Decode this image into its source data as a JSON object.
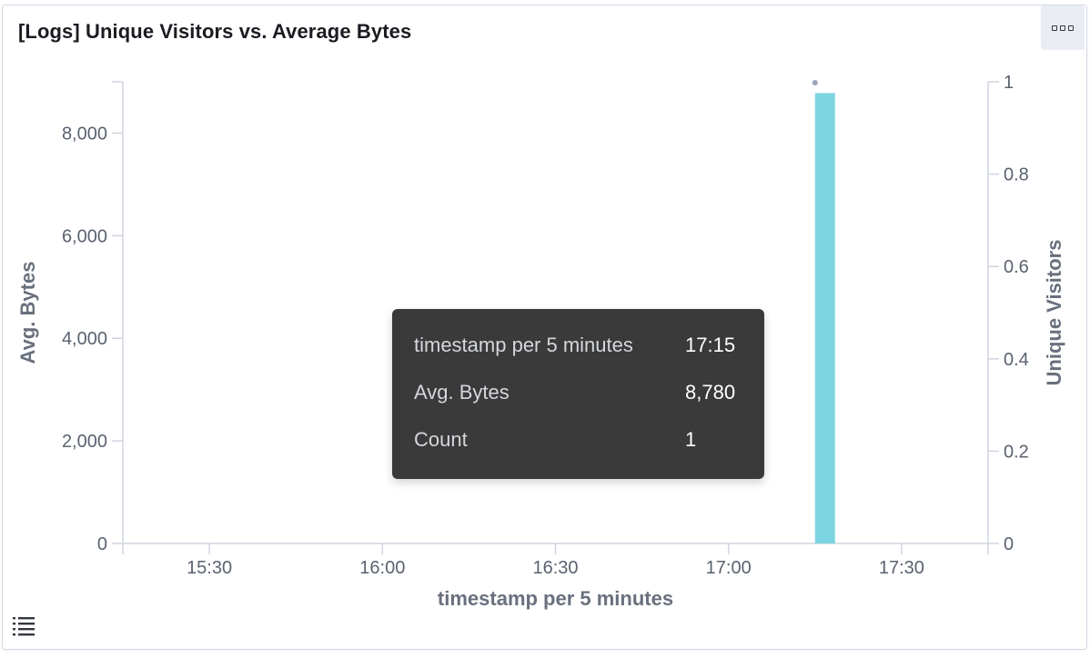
{
  "panel": {
    "title": "[Logs] Unique Visitors vs. Average Bytes"
  },
  "tooltip": {
    "rows": [
      {
        "label": "timestamp per 5 minutes",
        "value": "17:15"
      },
      {
        "label": "Avg. Bytes",
        "value": "8,780"
      },
      {
        "label": "Count",
        "value": "1"
      }
    ]
  },
  "chart_data": {
    "type": "bar",
    "xlabel": "timestamp per 5 minutes",
    "x_ticks": [
      "15:30",
      "16:00",
      "16:30",
      "17:00",
      "17:30"
    ],
    "x_range": [
      "15:15",
      "17:45"
    ],
    "y_left": {
      "label": "Avg. Bytes",
      "ticks": [
        "0",
        "2,000",
        "4,000",
        "6,000",
        "8,000"
      ],
      "range": [
        0,
        9000
      ]
    },
    "y_right": {
      "label": "Unique Visitors",
      "ticks": [
        "0",
        "0.2",
        "0.4",
        "0.6",
        "0.8",
        "1"
      ],
      "range": [
        0,
        1
      ]
    },
    "series": [
      {
        "name": "Avg. Bytes",
        "axis": "left",
        "type": "bar",
        "color": "#7dd5e1",
        "points": [
          {
            "x": "17:15",
            "y": 8780
          }
        ]
      },
      {
        "name": "Unique Visitors",
        "axis": "right",
        "type": "line",
        "color": "#9aa6b8",
        "points": [
          {
            "x": "17:15",
            "y": 1
          }
        ]
      }
    ],
    "grid": false,
    "colors": {
      "axis": "#cfd5df",
      "tick_text": "#5a6270",
      "axis_title": "#69707d"
    }
  }
}
